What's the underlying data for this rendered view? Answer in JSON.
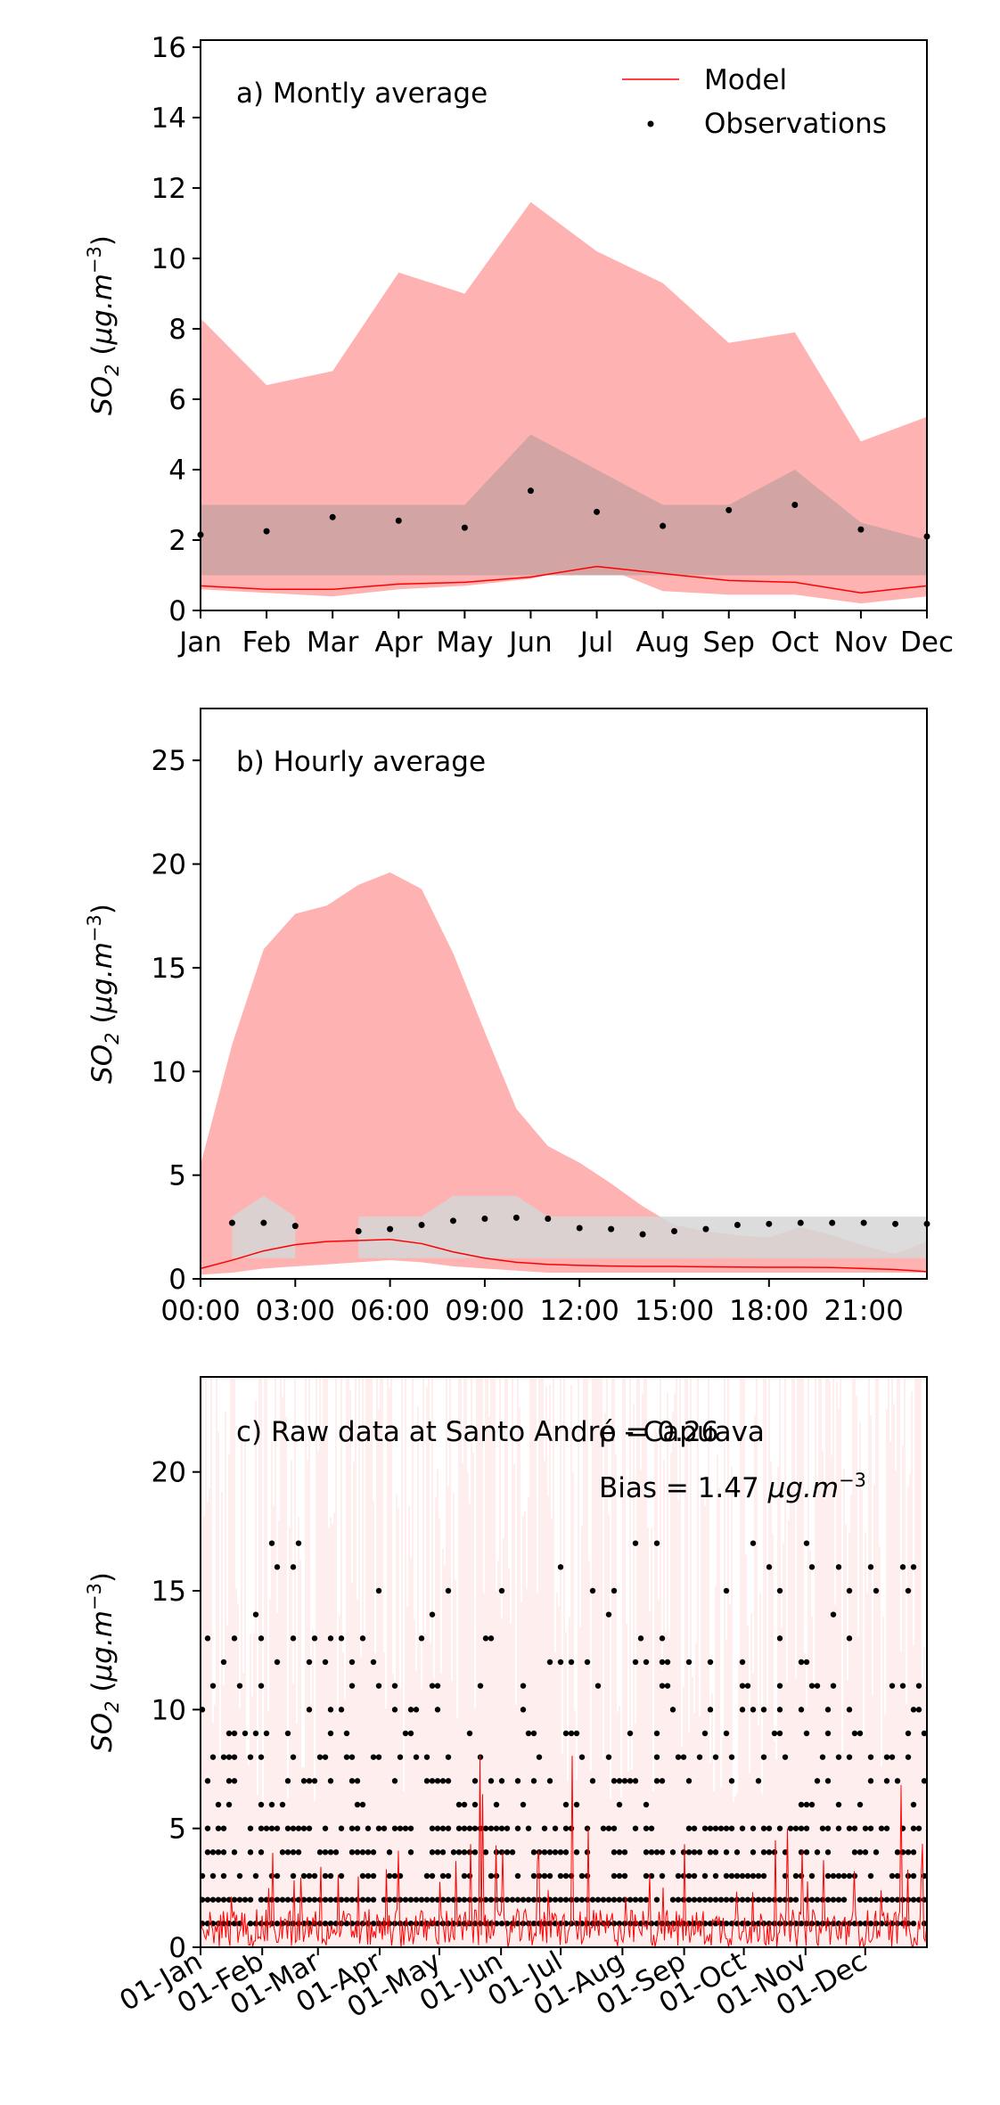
{
  "chart_data": [
    {
      "type": "area",
      "annotation": "a) Montly average",
      "ylabel": "SO",
      "ylabel_sub": "2",
      "ylabel_units_prefix": " (",
      "ylabel_units": "μg.m",
      "ylabel_sup": "−3",
      "ylabel_units_suffix": ")",
      "ylim": [
        0,
        16.2
      ],
      "yticks": [
        0,
        2,
        4,
        6,
        8,
        10,
        12,
        14,
        16
      ],
      "categories": [
        "Jan",
        "Feb",
        "Mar",
        "Apr",
        "May",
        "Jun",
        "Jul",
        "Aug",
        "Sep",
        "Oct",
        "Nov",
        "Dec"
      ],
      "legend": {
        "placement": "top-right",
        "items": [
          "Model",
          "Observations"
        ]
      },
      "model_band": {
        "low": [
          0.6,
          0.5,
          0.4,
          0.6,
          0.7,
          0.9,
          1.3,
          0.55,
          0.45,
          0.45,
          0.2,
          0.4
        ],
        "high": [
          8.3,
          6.4,
          6.8,
          9.6,
          9.0,
          11.6,
          10.2,
          9.3,
          7.6,
          7.9,
          4.8,
          5.5
        ]
      },
      "obs_band": {
        "low": [
          1,
          1,
          1,
          1,
          1,
          1,
          1,
          1,
          1,
          1,
          1,
          1
        ],
        "high": [
          3,
          3,
          3,
          3,
          3,
          5,
          4,
          3,
          3,
          4,
          2.5,
          2
        ]
      },
      "series": [
        {
          "name": "Model",
          "values": [
            0.7,
            0.6,
            0.6,
            0.75,
            0.8,
            0.95,
            1.25,
            1.05,
            0.85,
            0.8,
            0.5,
            0.7
          ]
        },
        {
          "name": "Observations",
          "values": [
            2.15,
            2.25,
            2.65,
            2.55,
            2.35,
            3.4,
            2.8,
            2.4,
            2.85,
            3.0,
            2.3,
            2.1
          ]
        }
      ],
      "colors": {
        "model": "#ff0000",
        "model_band": "#ffb2b2",
        "obs": "#000000",
        "obs_band": "#d3a4a4"
      }
    },
    {
      "type": "area",
      "annotation": "b) Hourly average",
      "ylabel": "SO",
      "ylabel_sub": "2",
      "ylabel_units_prefix": " (",
      "ylabel_units": "μg.m",
      "ylabel_sup": "−3",
      "ylabel_units_suffix": ")",
      "ylim": [
        0,
        27.5
      ],
      "yticks": [
        0,
        5,
        10,
        15,
        20,
        25
      ],
      "xlim": [
        0,
        23
      ],
      "xticks": [
        {
          "value": 0,
          "label": "00:00"
        },
        {
          "value": 3,
          "label": "03:00"
        },
        {
          "value": 6,
          "label": "06:00"
        },
        {
          "value": 9,
          "label": "09:00"
        },
        {
          "value": 12,
          "label": "12:00"
        },
        {
          "value": 15,
          "label": "15:00"
        },
        {
          "value": 18,
          "label": "18:00"
        },
        {
          "value": 21,
          "label": "21:00"
        }
      ],
      "hours": [
        0,
        1,
        2,
        3,
        4,
        5,
        6,
        7,
        8,
        9,
        10,
        11,
        12,
        13,
        14,
        15,
        16,
        17,
        18,
        19,
        20,
        21,
        22,
        23
      ],
      "model_band": {
        "low": [
          0.2,
          0.3,
          0.5,
          0.6,
          0.7,
          0.8,
          0.9,
          0.8,
          0.6,
          0.5,
          0.4,
          0.3,
          0.3,
          0.3,
          0.3,
          0.3,
          0.3,
          0.3,
          0.3,
          0.3,
          0.3,
          0.3,
          0.3,
          0.3
        ],
        "high": [
          5.5,
          11.3,
          15.9,
          17.6,
          18.0,
          19.0,
          19.6,
          18.8,
          15.7,
          11.9,
          8.2,
          6.4,
          5.6,
          4.6,
          3.5,
          2.6,
          2.3,
          2.1,
          2.0,
          2.5,
          2.1,
          1.6,
          1.2,
          1.8
        ]
      },
      "obs_band": {
        "hours": [
          1,
          2,
          3,
          5,
          6,
          7,
          8,
          9,
          10,
          11,
          12,
          13,
          14,
          15,
          16,
          17,
          18,
          19,
          20,
          21,
          22,
          23
        ],
        "low": [
          1,
          1,
          1,
          1,
          1,
          1,
          1,
          1,
          1,
          1,
          1,
          1,
          1,
          1,
          1,
          1,
          1,
          1,
          1,
          1,
          1,
          1
        ],
        "high": [
          3,
          4,
          3,
          3,
          3,
          3,
          4,
          4,
          4,
          3,
          3,
          3,
          3,
          3,
          3,
          3,
          3,
          3,
          3,
          3,
          3,
          3
        ]
      },
      "series": [
        {
          "name": "Model",
          "values": [
            0.5,
            0.9,
            1.35,
            1.65,
            1.8,
            1.85,
            1.9,
            1.7,
            1.3,
            1.0,
            0.8,
            0.7,
            0.65,
            0.62,
            0.6,
            0.6,
            0.58,
            0.57,
            0.56,
            0.56,
            0.55,
            0.5,
            0.45,
            0.35
          ]
        },
        {
          "name": "Observations",
          "hours": [
            1,
            2,
            3,
            5,
            6,
            7,
            8,
            9,
            10,
            11,
            12,
            13,
            14,
            15,
            16,
            17,
            18,
            19,
            20,
            21,
            22,
            23
          ],
          "values": [
            2.7,
            2.7,
            2.55,
            2.3,
            2.4,
            2.6,
            2.8,
            2.9,
            2.95,
            2.9,
            2.45,
            2.4,
            2.15,
            2.3,
            2.4,
            2.6,
            2.65,
            2.7,
            2.7,
            2.7,
            2.65,
            2.65
          ]
        }
      ],
      "colors": {
        "model": "#ff0000",
        "model_band": "#ffb2b2",
        "obs": "#000000",
        "obs_band": "#d6d6d6"
      }
    },
    {
      "type": "scatter",
      "annotation": "c) Raw data at Santo André - Capuava",
      "annotation_overlap": "ρ = 0.26",
      "bias_prefix": "Bias = 1.47 ",
      "bias_units": "μg.m",
      "bias_sup": "−3",
      "ylabel": "SO",
      "ylabel_sub": "2",
      "ylabel_units_prefix": " (",
      "ylabel_units": "μg.m",
      "ylabel_sup": "−3",
      "ylabel_units_suffix": ")",
      "ylim": [
        0,
        24
      ],
      "yticks": [
        0,
        5,
        10,
        15,
        20
      ],
      "xlim_days": [
        0,
        365
      ],
      "xticks": [
        {
          "day": 0,
          "label": "01-Jan"
        },
        {
          "day": 31,
          "label": "01-Feb"
        },
        {
          "day": 59,
          "label": "01-Mar"
        },
        {
          "day": 90,
          "label": "01-Apr"
        },
        {
          "day": 120,
          "label": "01-May"
        },
        {
          "day": 151,
          "label": "01-Jun"
        },
        {
          "day": 181,
          "label": "01-Jul"
        },
        {
          "day": 212,
          "label": "01-Aug"
        },
        {
          "day": 243,
          "label": "01-Sep"
        },
        {
          "day": 273,
          "label": "01-Oct"
        },
        {
          "day": 304,
          "label": "01-Nov"
        },
        {
          "day": 334,
          "label": "01-Dec"
        }
      ],
      "obs_levels": [
        1,
        2,
        3,
        4,
        5,
        6,
        7,
        8,
        9,
        10,
        11,
        12,
        13,
        14,
        15,
        16,
        17
      ],
      "colors": {
        "model": "#ff0000",
        "model_spread": "#ffd0d0",
        "obs": "#000000"
      }
    }
  ]
}
